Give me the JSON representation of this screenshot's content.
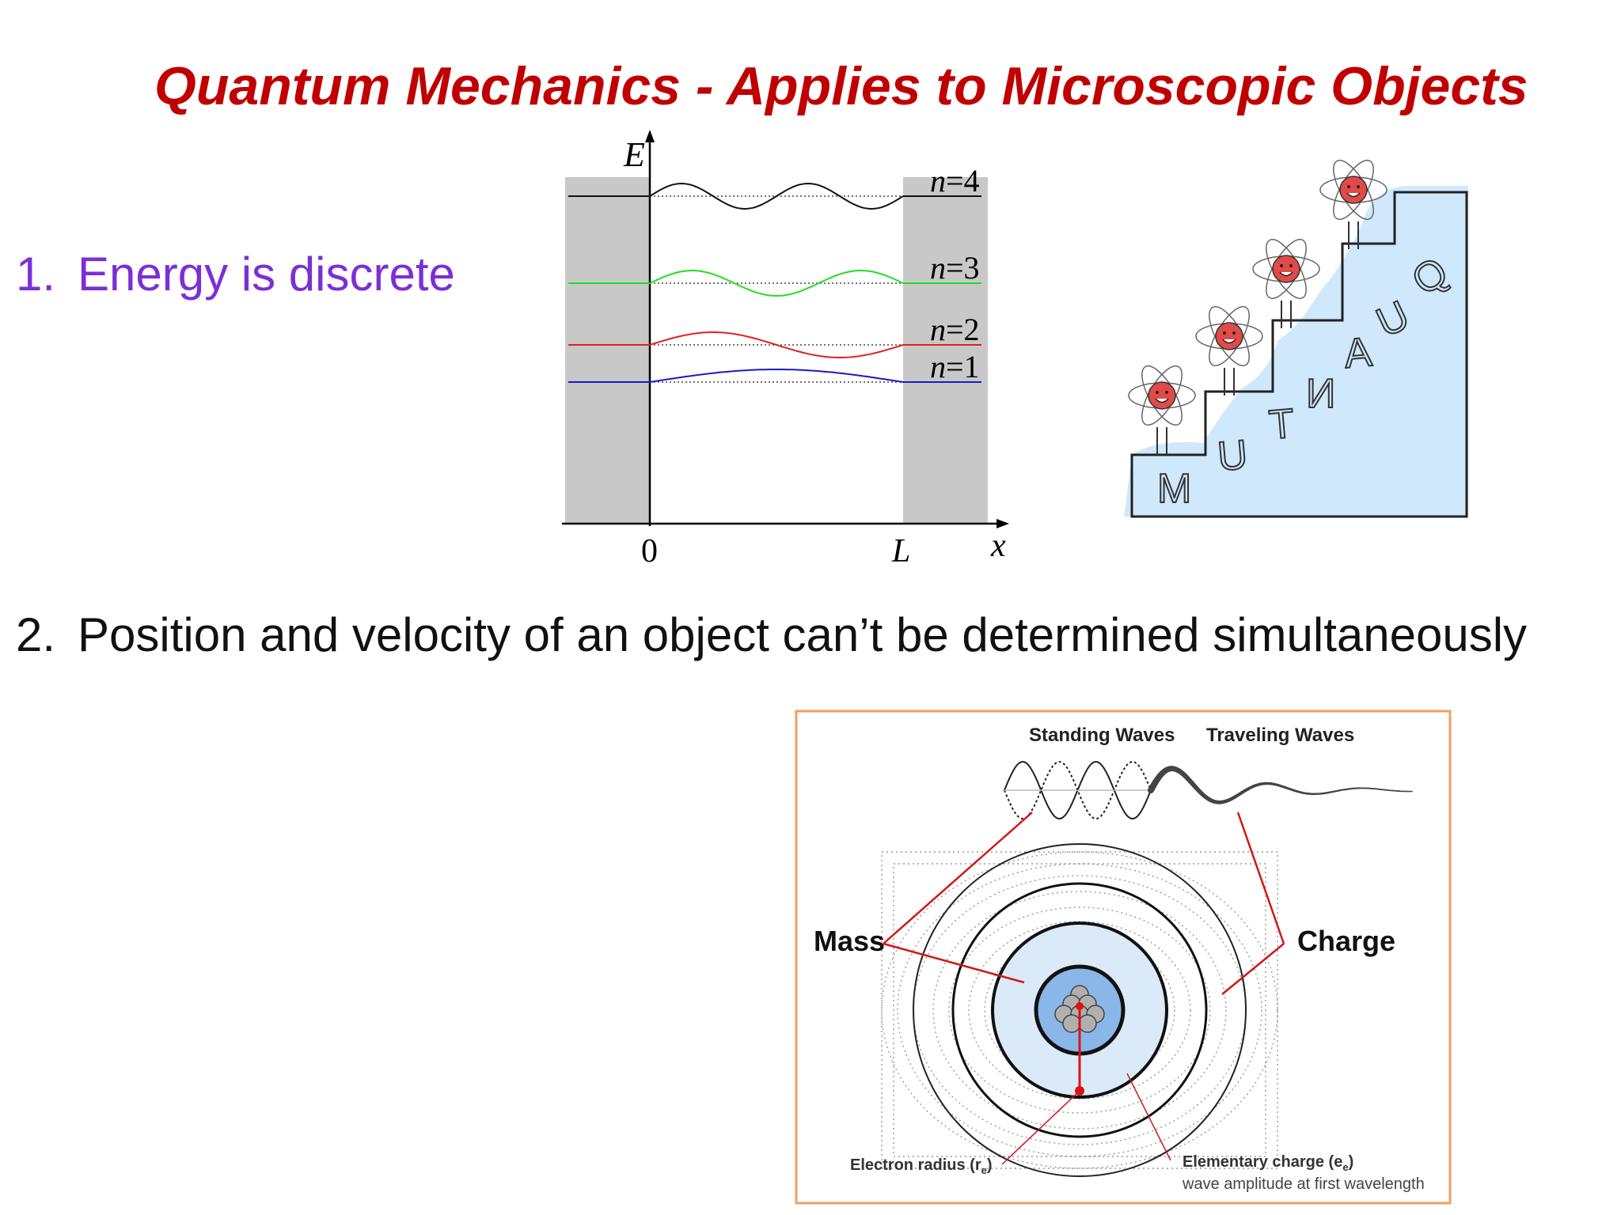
{
  "title": "Quantum Mechanics - Applies to Microscopic Objects",
  "points": [
    {
      "number": "1.",
      "text": "Energy is discrete",
      "color": "#7b2fd6"
    },
    {
      "number": "2.",
      "text": "Position and velocity of an object can’t be determined simultaneously",
      "color": "#111111"
    }
  ],
  "well_diagram": {
    "y_axis_label": "E",
    "x_axis_label": "x",
    "origin_label": "0",
    "width_label": "L",
    "levels": [
      {
        "label_n": "n",
        "label_eq": "=4",
        "n": 4,
        "color": "#111111"
      },
      {
        "label_n": "n",
        "label_eq": "=3",
        "n": 3,
        "color": "#22dd22"
      },
      {
        "label_n": "n",
        "label_eq": "=2",
        "n": 2,
        "color": "#e02020"
      },
      {
        "label_n": "n",
        "label_eq": "=1",
        "n": 1,
        "color": "#1a1acc"
      }
    ]
  },
  "stairs_cartoon": {
    "letters": [
      "M",
      "U",
      "T",
      "И",
      "A",
      "U",
      "Q"
    ]
  },
  "atom_diagram": {
    "frame_color": "#f0a060",
    "standing_waves_label": "Standing Waves",
    "traveling_waves_label": "Traveling Waves",
    "mass_label": "Mass",
    "charge_label": "Charge",
    "electron_radius_label": "Electron radius (r",
    "electron_radius_sub": "e",
    "electron_radius_close": ")",
    "elementary_charge_label": "Elementary charge (e",
    "elementary_charge_sub": "e",
    "elementary_charge_close": ")",
    "elementary_charge_sublabel": "wave amplitude at first wavelength"
  }
}
